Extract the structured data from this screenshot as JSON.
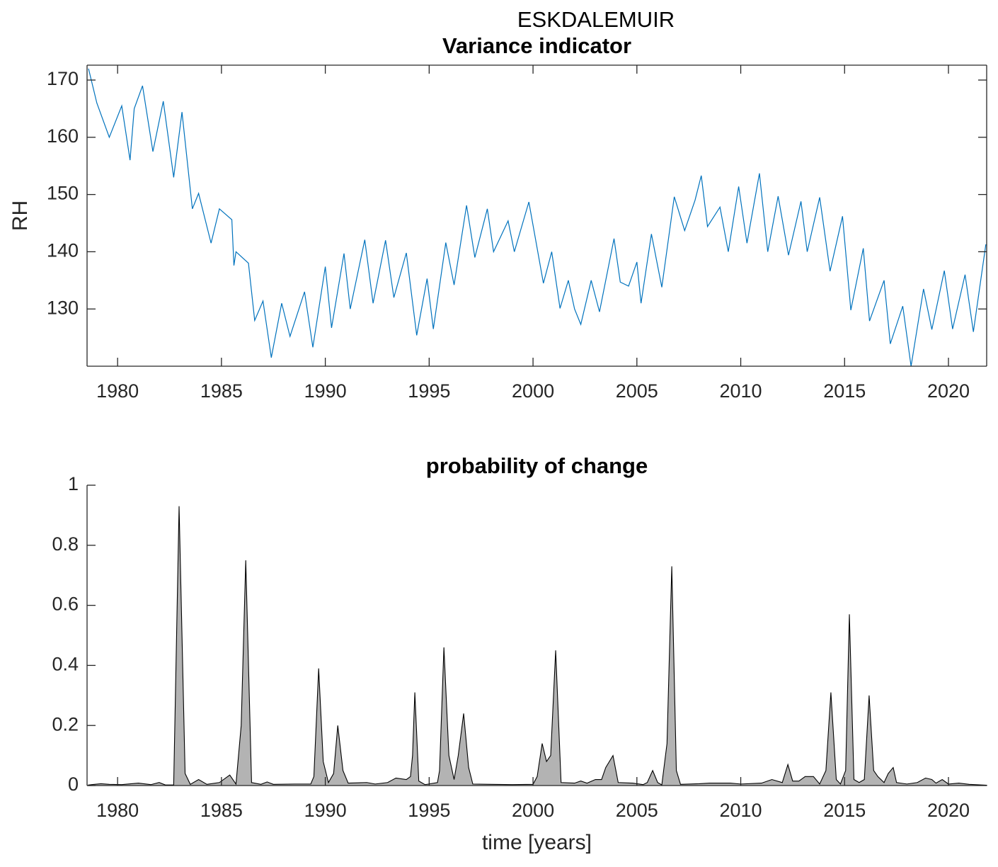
{
  "title": "ESKDALEMUIR",
  "chart_data": [
    {
      "type": "line",
      "title": "Variance indicator",
      "y_label": "RH",
      "color": "#0072bd",
      "box": true,
      "xlim": [
        1978.53,
        2021.84
      ],
      "ylim": [
        120,
        172.6
      ],
      "xticks": [
        1980,
        1985,
        1990,
        1995,
        2000,
        2005,
        2010,
        2015,
        2020
      ],
      "yticks": [
        130,
        140,
        150,
        160,
        170
      ],
      "x": [
        1978.6,
        1979.0,
        1979.6,
        1980.2,
        1980.6,
        1980.8,
        1981.2,
        1981.7,
        1982.2,
        1982.7,
        1983.1,
        1983.6,
        1983.9,
        1984.5,
        1984.9,
        1985.5,
        1985.6,
        1985.7,
        1986.3,
        1986.6,
        1987.0,
        1987.4,
        1987.9,
        1988.3,
        1989.0,
        1989.4,
        1990.0,
        1990.3,
        1990.9,
        1991.2,
        1991.9,
        1992.3,
        1992.9,
        1993.3,
        1993.9,
        1994.4,
        1994.9,
        1995.2,
        1995.8,
        1996.2,
        1996.8,
        1997.2,
        1997.8,
        1998.1,
        1998.8,
        1999.1,
        1999.8,
        2000.5,
        2000.9,
        2001.3,
        2001.7,
        2002.0,
        2002.3,
        2002.8,
        2003.2,
        2003.9,
        2004.2,
        2004.6,
        2005.0,
        2005.2,
        2005.7,
        2006.2,
        2006.8,
        2007.3,
        2007.8,
        2008.1,
        2008.4,
        2009.0,
        2009.4,
        2009.9,
        2010.3,
        2010.9,
        2011.3,
        2011.8,
        2012.3,
        2012.9,
        2013.2,
        2013.8,
        2014.3,
        2014.9,
        2015.3,
        2015.9,
        2016.2,
        2016.9,
        2017.2,
        2017.8,
        2018.2,
        2018.8,
        2019.2,
        2019.8,
        2020.2,
        2020.8,
        2021.2,
        2021.8
      ],
      "values": [
        172,
        166,
        160,
        165.5,
        156,
        165,
        169,
        157.5,
        166.3,
        153,
        164.4,
        147.5,
        150.2,
        141.5,
        147.5,
        145.6,
        137.6,
        140,
        138,
        128,
        131.4,
        121.5,
        131,
        125.2,
        133,
        123.3,
        137.4,
        126.7,
        139.7,
        130,
        142.1,
        131,
        142,
        132,
        139.8,
        125.4,
        135.3,
        126.5,
        141.6,
        134.2,
        148.1,
        139,
        147.5,
        140,
        145.4,
        140,
        148.7,
        134.5,
        140,
        130.1,
        135,
        130,
        127.3,
        135,
        129.5,
        142.3,
        134.7,
        134,
        138.2,
        131,
        143.1,
        133.8,
        149.6,
        143.7,
        149,
        153.3,
        144.4,
        147.8,
        140,
        151.4,
        141.5,
        153.7,
        140,
        149.7,
        139.4,
        148.8,
        140,
        149.5,
        136.6,
        146.2,
        129.8,
        140.6,
        127.9,
        135,
        123.9,
        130.5,
        120,
        133.5,
        126.4,
        136.7,
        126.5,
        136,
        126,
        141.3
      ]
    },
    {
      "type": "area",
      "title": "probability of change",
      "x_label": "time [years]",
      "color": "#b3b3b3",
      "edge_color": "#000000",
      "box": false,
      "xlim": [
        1978.53,
        2021.84
      ],
      "ylim": [
        0,
        1
      ],
      "xticks": [
        1980,
        1985,
        1990,
        1995,
        2000,
        2005,
        2010,
        2015,
        2020
      ],
      "yticks": [
        0,
        0.2,
        0.4,
        0.6,
        0.8,
        1
      ],
      "x": [
        1978.6,
        1979.2,
        1979.6,
        1980.2,
        1981.0,
        1981.6,
        1982.0,
        1982.3,
        1982.7,
        1982.96,
        1983.25,
        1983.5,
        1983.9,
        1984.3,
        1984.9,
        1985.4,
        1985.7,
        1985.95,
        1986.17,
        1986.45,
        1986.9,
        1987.2,
        1987.5,
        1988.5,
        1989.3,
        1989.45,
        1989.68,
        1989.9,
        1990.15,
        1990.4,
        1990.6,
        1990.85,
        1991.1,
        1992.0,
        1992.4,
        1993.0,
        1993.4,
        1993.9,
        1994.1,
        1994.2,
        1994.31,
        1994.5,
        1994.8,
        1995.4,
        1995.5,
        1995.71,
        1995.95,
        1996.2,
        1996.4,
        1996.66,
        1996.9,
        1997.1,
        1998.0,
        1999.0,
        2000.0,
        2000.2,
        2000.44,
        2000.65,
        2000.85,
        2001.09,
        2001.35,
        2002.0,
        2002.3,
        2002.6,
        2003.0,
        2003.3,
        2003.5,
        2003.85,
        2004.1,
        2004.8,
        2005.3,
        2005.5,
        2005.76,
        2006.0,
        2006.2,
        2006.45,
        2006.68,
        2006.9,
        2007.1,
        2008.0,
        2008.5,
        2009.5,
        2010.0,
        2011.0,
        2011.5,
        2012.0,
        2012.27,
        2012.5,
        2012.8,
        2013.1,
        2013.5,
        2013.8,
        2014.1,
        2014.34,
        2014.6,
        2014.8,
        2015.05,
        2015.23,
        2015.45,
        2015.7,
        2015.95,
        2016.18,
        2016.4,
        2016.6,
        2016.9,
        2017.1,
        2017.34,
        2017.5,
        2018.0,
        2018.5,
        2018.9,
        2019.2,
        2019.4,
        2019.7,
        2020.0,
        2020.5,
        2021.0,
        2021.84
      ],
      "values": [
        0.002,
        0.006,
        0.004,
        0.003,
        0.008,
        0.003,
        0.01,
        0.002,
        0.002,
        0.93,
        0.04,
        0.004,
        0.02,
        0.004,
        0.01,
        0.035,
        0.005,
        0.2,
        0.75,
        0.01,
        0.004,
        0.012,
        0.004,
        0.005,
        0.005,
        0.03,
        0.39,
        0.08,
        0.01,
        0.04,
        0.2,
        0.05,
        0.008,
        0.01,
        0.005,
        0.01,
        0.025,
        0.02,
        0.03,
        0.1,
        0.31,
        0.015,
        0.003,
        0.01,
        0.05,
        0.46,
        0.1,
        0.02,
        0.1,
        0.24,
        0.06,
        0.005,
        0.004,
        0.003,
        0.004,
        0.03,
        0.14,
        0.08,
        0.1,
        0.45,
        0.01,
        0.008,
        0.015,
        0.008,
        0.02,
        0.02,
        0.06,
        0.1,
        0.01,
        0.008,
        0.003,
        0.01,
        0.05,
        0.01,
        0.002,
        0.14,
        0.73,
        0.05,
        0.004,
        0.006,
        0.008,
        0.008,
        0.005,
        0.008,
        0.02,
        0.01,
        0.07,
        0.015,
        0.015,
        0.03,
        0.03,
        0.005,
        0.05,
        0.31,
        0.02,
        0.005,
        0.05,
        0.57,
        0.02,
        0.01,
        0.02,
        0.3,
        0.05,
        0.03,
        0.01,
        0.04,
        0.06,
        0.01,
        0.005,
        0.01,
        0.025,
        0.02,
        0.008,
        0.02,
        0.005,
        0.008,
        0.004,
        0.001
      ]
    }
  ]
}
